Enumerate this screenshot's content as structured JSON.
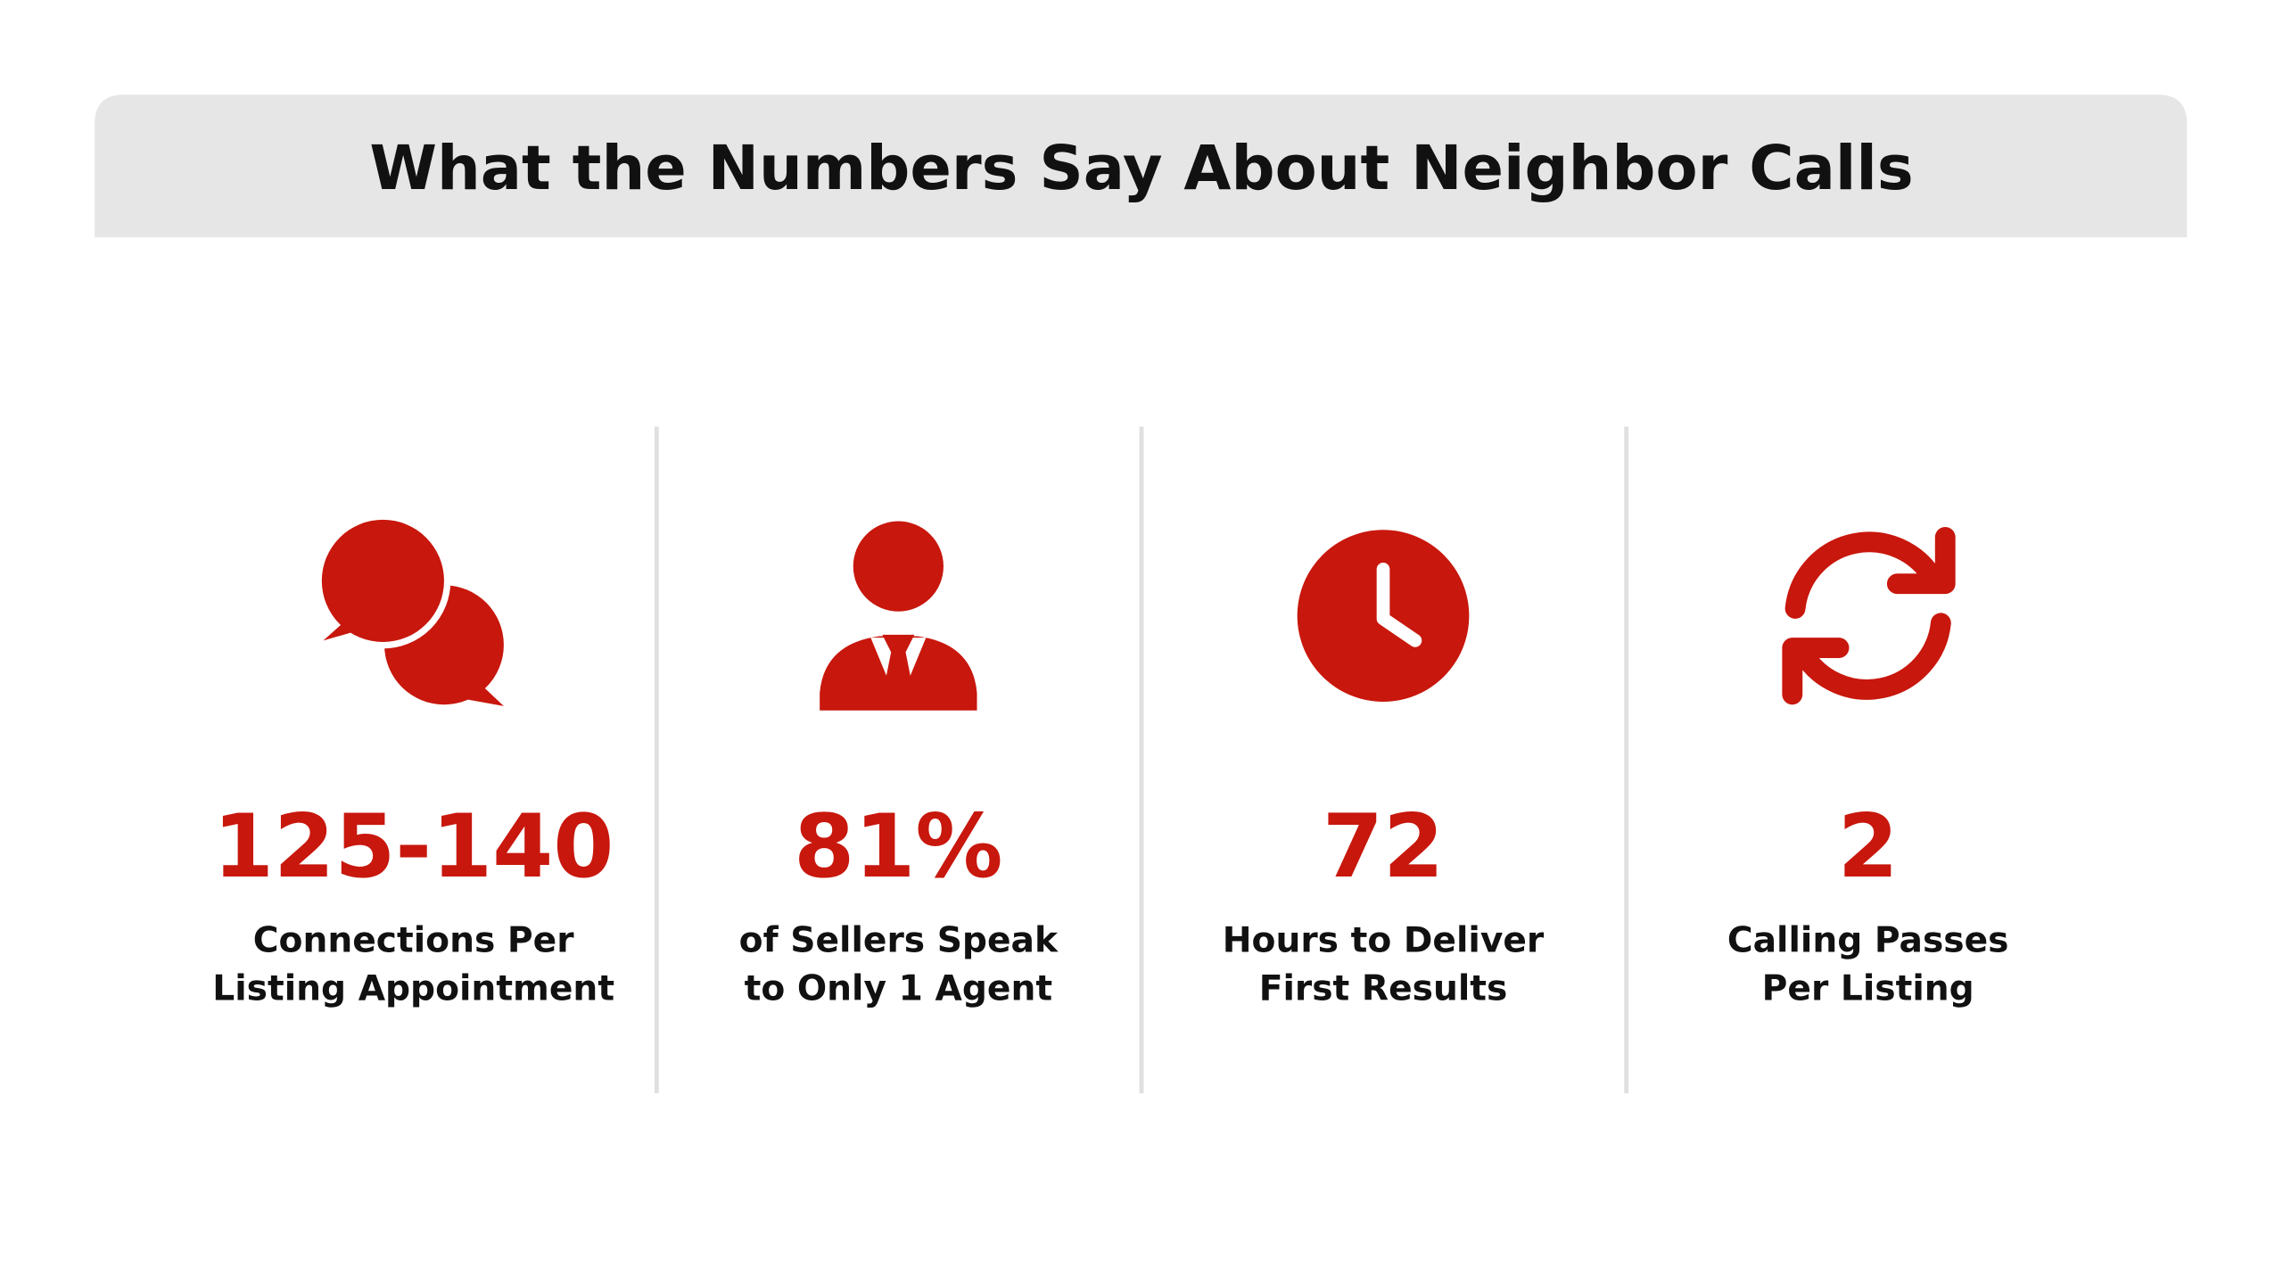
{
  "header": {
    "title": "What the Numbers Say About Neighbor Calls"
  },
  "stats": [
    {
      "value": "125-140",
      "lines": [
        "Connections Per",
        "Listing Appointment"
      ]
    },
    {
      "value": "81%",
      "lines": [
        "of Sellers Speak",
        "to Only 1 Agent"
      ]
    },
    {
      "value": "72",
      "lines": [
        "Hours to Deliver",
        "First Results"
      ]
    },
    {
      "value": "2",
      "lines": [
        "Calling Passes",
        "Per Listing"
      ]
    }
  ]
}
